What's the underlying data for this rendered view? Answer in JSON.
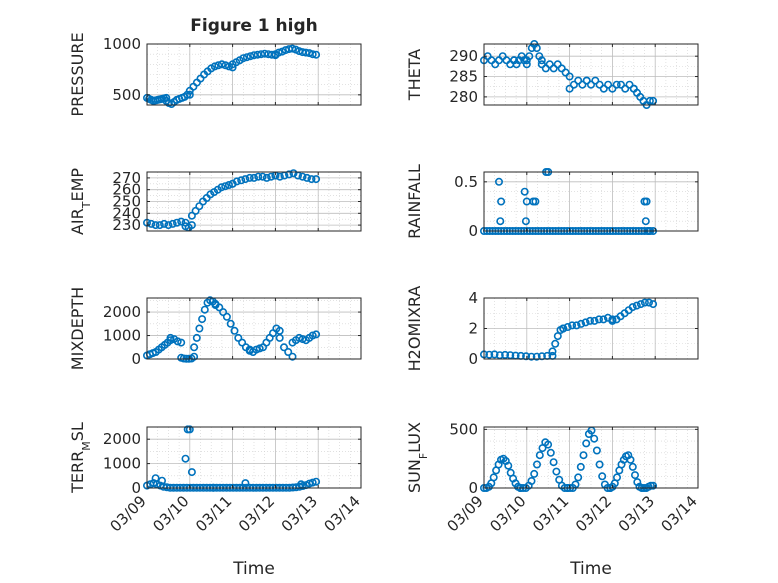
{
  "figure_title": "Figure 1 high",
  "marker_color": "#0072BD",
  "x_tick_labels": [
    "03/09",
    "03/10",
    "03/11",
    "03/12",
    "03/13",
    "03/14"
  ],
  "xlabel": "Time",
  "chart_data": [
    {
      "id": "pressure",
      "type": "scatter",
      "title": "Figure 1 high",
      "ylabel": "PRESSURE",
      "ylabel_parts": [
        {
          "t": "PRESSURE"
        }
      ],
      "xlim": [
        0,
        5
      ],
      "ylim": [
        400,
        1000
      ],
      "yticks": [
        500,
        1000
      ],
      "yminor": [
        600,
        700,
        800,
        900
      ],
      "segments": [
        {
          "x0": 0.0,
          "x1": 0.45,
          "v": [
            470,
            460,
            450,
            440,
            445,
            450,
            455,
            460,
            465,
            470
          ]
        },
        {
          "x0": 0.45,
          "x1": 1.0,
          "v": [
            440,
            420,
            410,
            430,
            450,
            460,
            470,
            480,
            500,
            500
          ]
        },
        {
          "x0": 1.0,
          "x1": 2.0,
          "v": [
            540,
            580,
            620,
            660,
            700,
            730,
            760,
            780,
            790,
            800,
            790,
            780,
            770
          ]
        },
        {
          "x0": 2.0,
          "x1": 3.0,
          "v": [
            800,
            820,
            840,
            860,
            870,
            880,
            890,
            895,
            900,
            905,
            900,
            895,
            890
          ]
        },
        {
          "x0": 3.0,
          "x1": 3.95,
          "v": [
            900,
            915,
            925,
            940,
            950,
            955,
            945,
            930,
            920,
            915,
            910,
            900,
            895
          ]
        }
      ]
    },
    {
      "id": "theta",
      "type": "scatter",
      "ylabel": "THETA",
      "ylabel_parts": [
        {
          "t": "THETA"
        }
      ],
      "xlim": [
        0,
        5
      ],
      "ylim": [
        278,
        293
      ],
      "yticks": [
        280,
        285,
        290
      ],
      "yminor": [
        282.5,
        287.5
      ],
      "segments": [
        {
          "x0": 0.0,
          "x1": 0.7,
          "v": [
            289,
            290,
            289,
            288,
            289,
            290,
            289,
            288,
            289
          ]
        },
        {
          "x0": 0.7,
          "x1": 1.0,
          "v": [
            289,
            288,
            289,
            290,
            289,
            288
          ]
        },
        {
          "x0": 1.0,
          "x1": 1.35,
          "v": [
            289,
            290,
            292,
            293,
            292,
            290,
            289
          ]
        },
        {
          "x0": 1.35,
          "x1": 2.0,
          "v": [
            288,
            287,
            288,
            287,
            288,
            287,
            286,
            285
          ]
        },
        {
          "x0": 2.0,
          "x1": 2.4,
          "v": [
            282,
            283,
            284,
            283,
            284
          ]
        },
        {
          "x0": 2.4,
          "x1": 3.5,
          "v": [
            284,
            283,
            284,
            283,
            282,
            283,
            282,
            283,
            283,
            282,
            283,
            282
          ]
        },
        {
          "x0": 3.5,
          "x1": 3.95,
          "v": [
            282,
            281,
            280,
            279,
            278,
            279,
            279
          ]
        }
      ]
    },
    {
      "id": "air_temp",
      "type": "scatter",
      "ylabel": "AIR_TEMP",
      "ylabel_parts": [
        {
          "t": "AIR"
        },
        {
          "t": "T",
          "sub": true
        },
        {
          "t": "EMP"
        }
      ],
      "xlim": [
        0,
        5
      ],
      "ylim": [
        225,
        275
      ],
      "yticks": [
        230,
        240,
        250,
        260,
        270
      ],
      "yminor": [
        235,
        245,
        255,
        265
      ],
      "segments": [
        {
          "x0": 0.0,
          "x1": 0.9,
          "v": [
            232,
            231,
            230,
            230,
            231,
            230,
            231,
            232,
            233,
            232
          ]
        },
        {
          "x0": 0.9,
          "x1": 1.05,
          "v": [
            229,
            228,
            230
          ]
        },
        {
          "x0": 1.05,
          "x1": 2.0,
          "v": [
            238,
            242,
            246,
            250,
            253,
            256,
            258,
            260,
            262,
            263,
            264,
            265
          ]
        },
        {
          "x0": 2.0,
          "x1": 3.0,
          "v": [
            265,
            267,
            268,
            269,
            270,
            270,
            271,
            271,
            270,
            271,
            272
          ]
        },
        {
          "x0": 3.0,
          "x1": 3.95,
          "v": [
            272,
            271,
            272,
            273,
            274,
            272,
            271,
            270,
            269,
            269
          ]
        }
      ]
    },
    {
      "id": "rainfall",
      "type": "scatter",
      "ylabel": "RAINFALL",
      "ylabel_parts": [
        {
          "t": "RAINFALL"
        }
      ],
      "xlim": [
        0,
        5
      ],
      "ylim": [
        0,
        0.6
      ],
      "yticks": [
        0,
        0.5
      ],
      "yminor": [
        0.1,
        0.2,
        0.3,
        0.4
      ],
      "segments": [
        {
          "x0": 0.0,
          "x1": 3.95,
          "v": [
            0,
            0,
            0,
            0,
            0,
            0,
            0,
            0,
            0,
            0,
            0,
            0,
            0,
            0,
            0,
            0,
            0,
            0,
            0,
            0,
            0,
            0,
            0,
            0,
            0,
            0,
            0,
            0,
            0,
            0,
            0,
            0,
            0,
            0,
            0,
            0,
            0,
            0,
            0,
            0,
            0,
            0,
            0,
            0,
            0,
            0,
            0,
            0,
            0,
            0,
            0,
            0,
            0,
            0,
            0,
            0,
            0,
            0,
            0,
            0
          ]
        }
      ],
      "points": [
        [
          0.35,
          0.5
        ],
        [
          0.38,
          0.1
        ],
        [
          0.4,
          0.3
        ],
        [
          0.95,
          0.4
        ],
        [
          1.0,
          0.3
        ],
        [
          0.98,
          0.1
        ],
        [
          1.15,
          0.3
        ],
        [
          1.2,
          0.3
        ],
        [
          1.45,
          0.6
        ],
        [
          1.5,
          0.6
        ],
        [
          3.75,
          0.3
        ],
        [
          3.8,
          0.3
        ],
        [
          3.78,
          0.1
        ],
        [
          3.85,
          0.0
        ]
      ]
    },
    {
      "id": "mixdepth",
      "type": "scatter",
      "ylabel": "MIXDEPTH",
      "ylabel_parts": [
        {
          "t": "MIXDEPTH"
        }
      ],
      "xlim": [
        0,
        5
      ],
      "ylim": [
        0,
        2600
      ],
      "yticks": [
        0,
        1000,
        2000
      ],
      "yminor": [
        500,
        1500,
        2500
      ],
      "segments": [
        {
          "x0": 0.0,
          "x1": 0.55,
          "v": [
            150,
            200,
            250,
            300,
            400,
            500,
            600,
            700,
            800
          ]
        },
        {
          "x0": 0.55,
          "x1": 0.8,
          "v": [
            900,
            850,
            750,
            700
          ]
        },
        {
          "x0": 0.8,
          "x1": 1.1,
          "v": [
            50,
            20,
            10,
            10,
            20,
            100
          ]
        },
        {
          "x0": 1.1,
          "x1": 1.6,
          "v": [
            500,
            900,
            1300,
            1700,
            2100,
            2400,
            2500,
            2450,
            2350
          ]
        },
        {
          "x0": 1.6,
          "x1": 2.4,
          "v": [
            2300,
            2200,
            2000,
            1800,
            1500,
            1200,
            900,
            700,
            500,
            400
          ]
        },
        {
          "x0": 2.4,
          "x1": 3.1,
          "v": [
            350,
            300,
            400,
            450,
            500,
            700,
            900,
            1100,
            1300,
            1200
          ]
        },
        {
          "x0": 3.1,
          "x1": 3.4,
          "v": [
            900,
            500,
            300,
            100
          ]
        },
        {
          "x0": 3.4,
          "x1": 3.95,
          "v": [
            700,
            800,
            900,
            850,
            800,
            900,
            1000,
            1050
          ]
        }
      ]
    },
    {
      "id": "h2omixra",
      "type": "scatter",
      "ylabel": "H2OMIXRA",
      "ylabel_parts": [
        {
          "t": "H2OMIXRA"
        }
      ],
      "xlim": [
        0,
        5
      ],
      "ylim": [
        0,
        4
      ],
      "yticks": [
        0,
        2,
        4
      ],
      "yminor": [
        1,
        3
      ],
      "segments": [
        {
          "x0": 0.0,
          "x1": 1.6,
          "v": [
            0.3,
            0.28,
            0.3,
            0.25,
            0.27,
            0.25,
            0.22,
            0.2,
            0.18,
            0.15,
            0.15,
            0.18,
            0.2,
            0.2
          ]
        },
        {
          "x0": 1.6,
          "x1": 1.85,
          "v": [
            0.5,
            1.0,
            1.5,
            1.9,
            2.0
          ]
        },
        {
          "x0": 1.85,
          "x1": 3.0,
          "v": [
            2.0,
            2.1,
            2.2,
            2.2,
            2.3,
            2.4,
            2.5,
            2.5,
            2.6,
            2.6,
            2.7,
            2.6
          ]
        },
        {
          "x0": 3.0,
          "x1": 3.95,
          "v": [
            2.5,
            2.6,
            2.8,
            3.0,
            3.2,
            3.4,
            3.5,
            3.6,
            3.7,
            3.7,
            3.6
          ]
        }
      ]
    },
    {
      "id": "terr_msl",
      "type": "scatter",
      "ylabel": "TERR_MSL",
      "ylabel_parts": [
        {
          "t": "TERR"
        },
        {
          "t": "M",
          "sub": true
        },
        {
          "t": "SL"
        }
      ],
      "xlim": [
        0,
        5
      ],
      "ylim": [
        0,
        2500
      ],
      "yticks": [
        0,
        1000,
        2000
      ],
      "yminor": [
        500,
        1500
      ],
      "segments": [
        {
          "x0": 0.0,
          "x1": 3.95,
          "v": [
            100,
            150,
            200,
            150,
            100,
            50,
            30,
            10,
            10,
            10,
            10,
            10,
            10,
            10,
            10,
            10,
            10,
            10,
            10,
            10,
            10,
            10,
            10,
            10,
            10,
            10,
            10,
            10,
            10,
            10,
            10,
            10,
            10,
            10,
            10,
            10,
            10,
            10,
            10,
            10,
            10,
            10,
            10,
            10,
            20,
            30,
            50,
            80,
            120,
            180,
            220,
            260
          ]
        }
      ],
      "points": [
        [
          0.2,
          400
        ],
        [
          0.35,
          300
        ],
        [
          0.9,
          1200
        ],
        [
          0.95,
          2400
        ],
        [
          1.0,
          2400
        ],
        [
          1.05,
          650
        ],
        [
          1.55,
          10
        ],
        [
          2.3,
          200
        ],
        [
          3.6,
          150
        ]
      ]
    },
    {
      "id": "sun_flux",
      "type": "scatter",
      "ylabel": "SUN_FLUX",
      "ylabel_parts": [
        {
          "t": "SUN"
        },
        {
          "t": "F",
          "sub": true
        },
        {
          "t": "LUX"
        }
      ],
      "xlim": [
        0,
        5
      ],
      "ylim": [
        0,
        520
      ],
      "yticks": [
        0,
        500
      ],
      "yminor": [
        100,
        200,
        300,
        400
      ],
      "segments": [
        {
          "x0": 0.0,
          "x1": 0.85,
          "v": [
            0,
            0,
            10,
            40,
            90,
            150,
            200,
            240,
            250,
            230,
            190,
            130,
            80,
            40,
            10,
            0
          ]
        },
        {
          "x0": 0.85,
          "x1": 1.95,
          "v": [
            0,
            0,
            0,
            20,
            60,
            120,
            200,
            280,
            340,
            390,
            370,
            300,
            220,
            140,
            70,
            20,
            0,
            0
          ]
        },
        {
          "x0": 1.95,
          "x1": 2.95,
          "v": [
            0,
            0,
            0,
            30,
            90,
            180,
            280,
            380,
            460,
            490,
            420,
            320,
            200,
            100,
            30,
            0,
            0
          ]
        },
        {
          "x0": 2.95,
          "x1": 3.95,
          "v": [
            0,
            10,
            40,
            90,
            150,
            200,
            240,
            270,
            280,
            240,
            180,
            110,
            50,
            10,
            0,
            0,
            0,
            10,
            20,
            20
          ]
        }
      ]
    }
  ]
}
